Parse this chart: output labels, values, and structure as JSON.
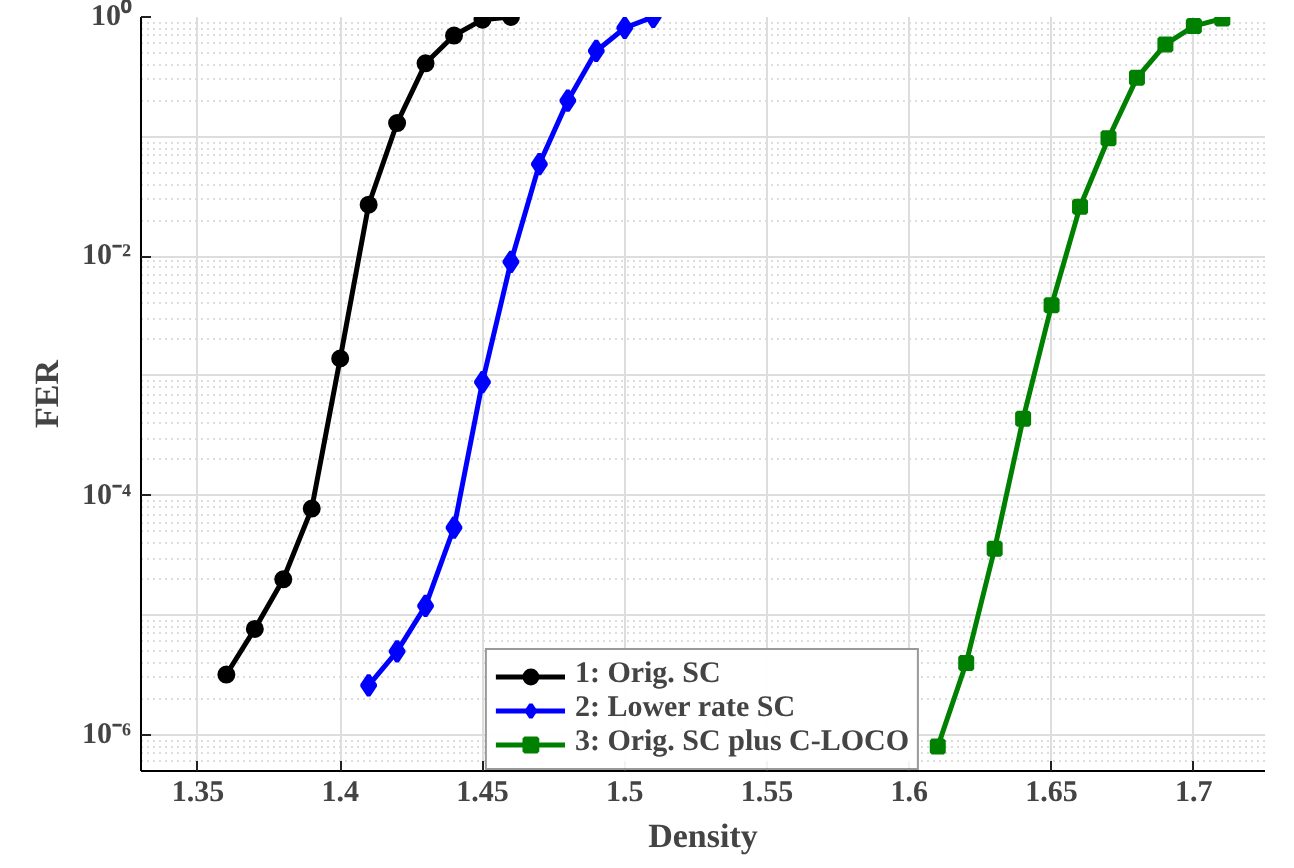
{
  "chart_data": {
    "type": "line",
    "xlabel": "Density",
    "ylabel": "FER",
    "log": "y",
    "grid": true,
    "legend": "bottom",
    "line_style": "solid",
    "xlim": [
      1.33,
      1.725
    ],
    "xticks": [
      1.35,
      1.4,
      1.45,
      1.5,
      1.55,
      1.6,
      1.65,
      1.7
    ],
    "ylim": [
      5e-07,
      1
    ],
    "yticks": [
      {
        "value": 1e-06,
        "label": "10⁻⁶"
      },
      {
        "value": 0.0001,
        "label": "10⁻⁴"
      },
      {
        "value": 0.01,
        "label": "10⁻²"
      },
      {
        "value": 1,
        "label": "10⁰"
      }
    ],
    "series": [
      {
        "name": "1: Orig. SC",
        "color": "#000000",
        "marker": "circle",
        "x": [
          1.36,
          1.37,
          1.38,
          1.39,
          1.4,
          1.41,
          1.42,
          1.43,
          1.44,
          1.45,
          1.46
        ],
        "values": [
          3.2e-06,
          7.7e-06,
          2e-05,
          7.8e-05,
          0.0014,
          0.027,
          0.13,
          0.41,
          0.7,
          0.95,
          1.0
        ]
      },
      {
        "name": "2: Lower rate SC",
        "color": "#0000ff",
        "marker": "diamond",
        "x": [
          1.41,
          1.42,
          1.43,
          1.44,
          1.45,
          1.46,
          1.47,
          1.48,
          1.49,
          1.5,
          1.51
        ],
        "values": [
          2.6e-06,
          5e-06,
          1.2e-05,
          5.4e-05,
          0.00089,
          0.009,
          0.059,
          0.2,
          0.52,
          0.81,
          1.0
        ]
      },
      {
        "name": "3: Orig. SC plus C-LOCO",
        "color": "#008000",
        "marker": "square",
        "x": [
          1.61,
          1.62,
          1.63,
          1.64,
          1.65,
          1.66,
          1.67,
          1.68,
          1.69,
          1.7,
          1.71
        ],
        "values": [
          8e-07,
          4e-06,
          3.6e-05,
          0.00044,
          0.0039,
          0.026,
          0.097,
          0.31,
          0.59,
          0.84,
          0.97
        ]
      }
    ]
  }
}
